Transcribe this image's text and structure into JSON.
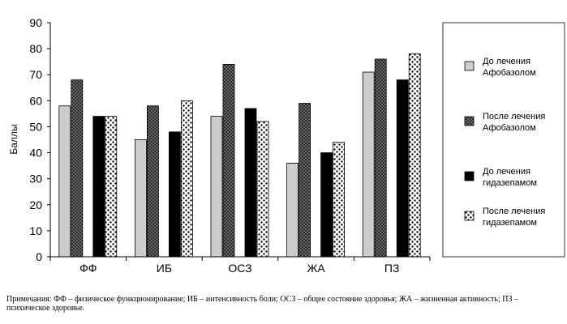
{
  "chart_data": {
    "type": "bar",
    "title": "",
    "xlabel": "",
    "ylabel": "Баллы",
    "ylim": [
      0,
      90
    ],
    "yticks": [
      0,
      10,
      20,
      30,
      40,
      50,
      60,
      70,
      80,
      90
    ],
    "grid": false,
    "legend_position": "right",
    "categories": [
      "ФФ",
      "ИБ",
      "ОСЗ",
      "ЖА",
      "ПЗ"
    ],
    "series": [
      {
        "name": "До лечения Афобазолом",
        "legend_lines": [
          "До лечения",
          "Афобазолом"
        ],
        "values": [
          58,
          45,
          54,
          36,
          71
        ],
        "fill": "#cccccc",
        "pattern": "solid"
      },
      {
        "name": "После лечения Афобазолом",
        "legend_lines": [
          "После лечения",
          "Афобазолом"
        ],
        "values": [
          68,
          58,
          74,
          59,
          76
        ],
        "fill": "#555555",
        "pattern": "checker"
      },
      {
        "name": "До лечения гидазепамом",
        "legend_lines": [
          "До лечения",
          "гидазепамом"
        ],
        "values": [
          54,
          48,
          57,
          40,
          68
        ],
        "fill": "#000000",
        "pattern": "solid"
      },
      {
        "name": "После лечения гидазепамом",
        "legend_lines": [
          "После лечения",
          "гидазепамом"
        ],
        "values": [
          54,
          60,
          52,
          44,
          78
        ],
        "fill": "#ffffff",
        "pattern": "dots"
      }
    ]
  },
  "note": "Примечания: ФФ – физическое функционирование; ИБ – интенсивность боли; ОСЗ – общее состояние здоровья; ЖА – жизненная активность; ПЗ – психическое здоровье."
}
